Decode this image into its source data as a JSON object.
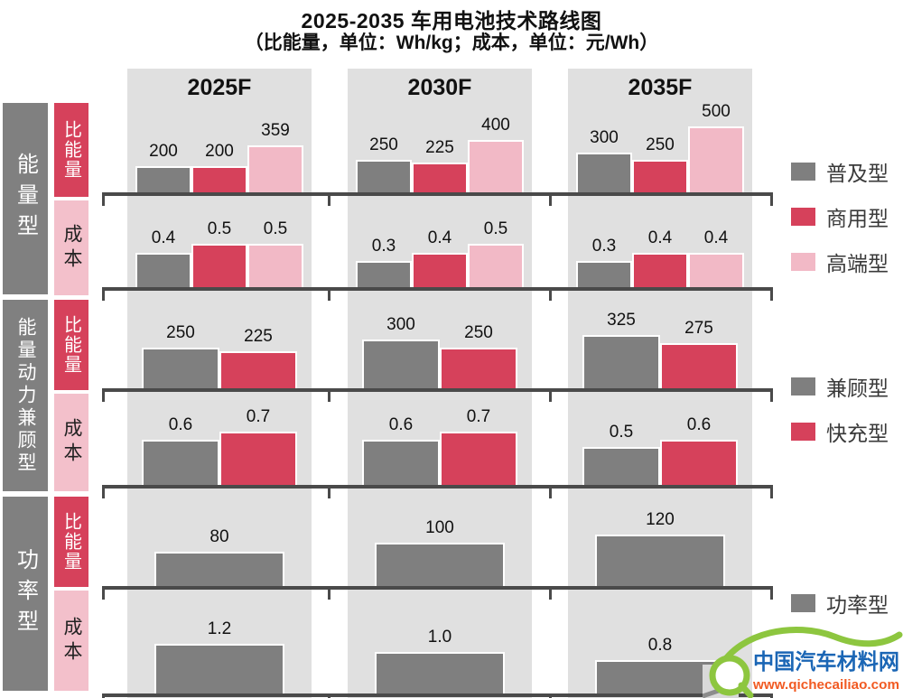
{
  "title": "2025-2035 车用电池技术路线图",
  "subtitle": "（比能量，单位：Wh/kg；成本，单位：元/Wh）",
  "columns": [
    "2025F",
    "2030F",
    "2035F"
  ],
  "row_groups": [
    {
      "label": "能量型",
      "sub_rows": [
        "比能量",
        "成本"
      ]
    },
    {
      "label": "能量动力兼顾型",
      "sub_rows": [
        "比能量",
        "成本"
      ]
    },
    {
      "label": "功率型",
      "sub_rows": [
        "比能量",
        "成本"
      ]
    }
  ],
  "legends": [
    {
      "items": [
        {
          "label": "普及型",
          "color": "#7F7F7F"
        },
        {
          "label": "商用型",
          "color": "#D6415B"
        },
        {
          "label": "高端型",
          "color": "#F2B9C6"
        }
      ]
    },
    {
      "items": [
        {
          "label": "兼顾型",
          "color": "#7F7F7F"
        },
        {
          "label": "快充型",
          "color": "#D6415B"
        }
      ]
    },
    {
      "items": [
        {
          "label": "功率型",
          "color": "#7F7F7F"
        }
      ]
    }
  ],
  "colors": {
    "bar_gray": "#7F7F7F",
    "bar_red": "#D6415B",
    "bar_pink": "#F2B9C6",
    "band_bg": "#E0E0E0",
    "axis": "#4A4A4A",
    "sidebar_gray": "#808080",
    "sub_energy_bg": "#D6415B",
    "sub_cost_bg": "#F3C0CB",
    "logo_green": "#8DC63F",
    "logo_blue": "#1B66B5",
    "logo_orange": "#F15A22"
  },
  "chart_data": {
    "type": "bar",
    "title": "2025-2035 车用电池技术路线图",
    "units": {
      "specific_energy": "Wh/kg",
      "cost": "元/Wh"
    },
    "columns": [
      "2025F",
      "2030F",
      "2035F"
    ],
    "legend_position": "right",
    "grid": false,
    "groups": [
      {
        "group": "能量型",
        "series": [
          "普及型",
          "商用型",
          "高端型"
        ],
        "rows": [
          {
            "metric": "比能量",
            "unit": "Wh/kg",
            "values": [
              [
                200,
                200,
                359
              ],
              [
                250,
                225,
                400
              ],
              [
                300,
                250,
                500
              ]
            ]
          },
          {
            "metric": "成本",
            "unit": "元/Wh",
            "values": [
              [
                0.4,
                0.5,
                0.5
              ],
              [
                0.3,
                0.4,
                0.5
              ],
              [
                0.3,
                0.4,
                0.4
              ]
            ]
          }
        ]
      },
      {
        "group": "能量动力兼顾型",
        "series": [
          "兼顾型",
          "快充型"
        ],
        "rows": [
          {
            "metric": "比能量",
            "unit": "Wh/kg",
            "values": [
              [
                250,
                225
              ],
              [
                300,
                250
              ],
              [
                325,
                275
              ]
            ]
          },
          {
            "metric": "成本",
            "unit": "元/Wh",
            "values": [
              [
                0.6,
                0.7
              ],
              [
                0.6,
                0.7
              ],
              [
                0.5,
                0.6
              ]
            ]
          }
        ]
      },
      {
        "group": "功率型",
        "series": [
          "功率型"
        ],
        "rows": [
          {
            "metric": "比能量",
            "unit": "Wh/kg",
            "values": [
              [
                80
              ],
              [
                100
              ],
              [
                120
              ]
            ]
          },
          {
            "metric": "成本",
            "unit": "元/Wh",
            "values": [
              [
                1.2
              ],
              [
                1.0
              ],
              [
                0.8
              ]
            ]
          }
        ]
      }
    ]
  },
  "logo": {
    "name": "中国汽车材料网",
    "url_text": "www.qichecailiao.com"
  }
}
